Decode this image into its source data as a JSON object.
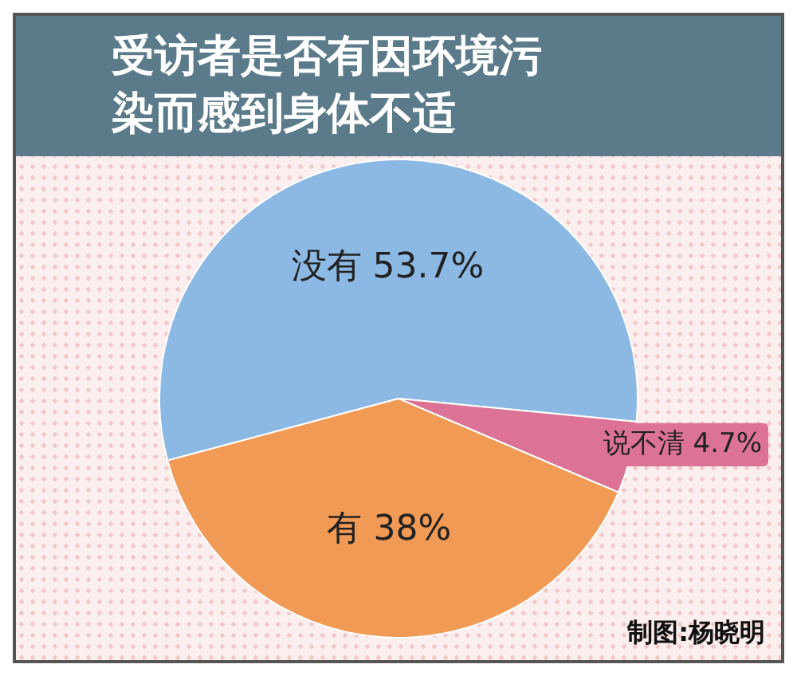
{
  "chart_data": {
    "type": "pie",
    "title": "受访者是否有因环境污染而感到身体不适",
    "categories": [
      "没有",
      "说不清",
      "有"
    ],
    "values": [
      53.7,
      4.7,
      38
    ],
    "value_labels": [
      "53.7%",
      "4.7%",
      "38%"
    ],
    "colors": [
      "#8cb9e3",
      "#dc7396",
      "#f19a55"
    ],
    "annotations": [
      "制图:杨晓明"
    ]
  }
}
